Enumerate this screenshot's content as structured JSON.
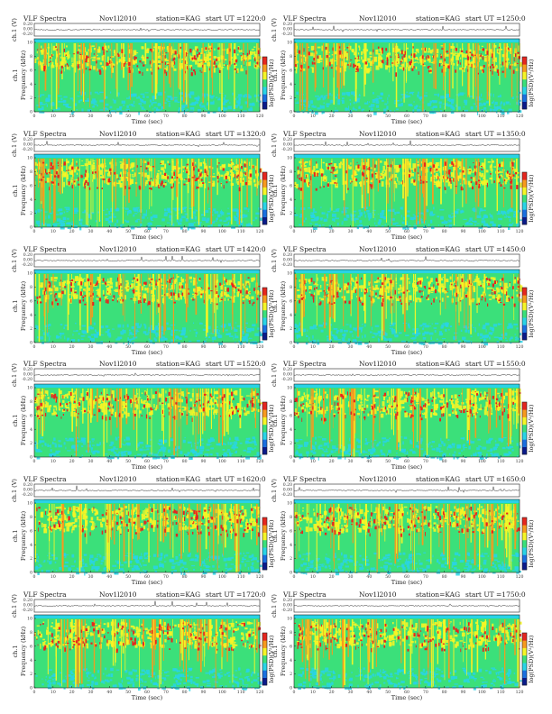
{
  "page": {
    "panel_title_prefix": "VLF Spectra",
    "station_label": "station=KAG",
    "start_label": "start  UT =",
    "xlabel": "Time  (sec)",
    "ylabel_spec": "Frequency  (kHz)",
    "ylabel_wave": "ch.1 (V)",
    "channel_label": "ch.1",
    "colorbar_label": "log(PSD) (V²/Hz)",
    "x_ticks": [
      "0",
      "10",
      "20",
      "30",
      "40",
      "50",
      "60",
      "70",
      "80",
      "90",
      "100",
      "110",
      "120"
    ],
    "freq_ticks": [
      "0",
      "2",
      "4",
      "6",
      "8",
      "10"
    ],
    "wave_ticks": [
      "0.20",
      "0.00",
      "-0.20"
    ],
    "colors": {
      "background_band": "#29d3e6",
      "mid": "#3be07a",
      "high": "#f5f526",
      "peak": "#e6261e",
      "cbar": [
        "#0b1a8a",
        "#1a6fe0",
        "#29d3e6",
        "#3be07a",
        "#f5f526",
        "#f79a1e",
        "#e6261e"
      ]
    }
  },
  "chart_data": [
    {
      "type": "heatmap",
      "date": "Nov1l2010",
      "start": "1220:0",
      "xlim": [
        0,
        120
      ],
      "ylim": [
        0,
        10
      ],
      "xlabel": "Time  (sec)",
      "ylabel": "Frequency  (kHz)",
      "colorbar": "log(PSD)(V²/Hz)"
    },
    {
      "type": "heatmap",
      "date": "Nov1l2010",
      "start": "1250:0",
      "xlim": [
        0,
        120
      ],
      "ylim": [
        0,
        10
      ],
      "xlabel": "Time  (sec)",
      "ylabel": "Frequency  (kHz)",
      "colorbar": "log(PSD)(V²/Hz)"
    },
    {
      "type": "heatmap",
      "date": "Nov1l2010",
      "start": "1320:0",
      "xlim": [
        0,
        120
      ],
      "ylim": [
        0,
        10
      ],
      "xlabel": "Time  (sec)",
      "ylabel": "Frequency  (kHz)",
      "colorbar": "log(PSD)(V²/Hz)"
    },
    {
      "type": "heatmap",
      "date": "Nov1l2010",
      "start": "1350:0",
      "xlim": [
        0,
        120
      ],
      "ylim": [
        0,
        10
      ],
      "xlabel": "Time  (sec)",
      "ylabel": "Frequency  (kHz)",
      "colorbar": "log(PSD)(V²/Hz)"
    },
    {
      "type": "heatmap",
      "date": "Nov1l2010",
      "start": "1420:0",
      "xlim": [
        0,
        120
      ],
      "ylim": [
        0,
        10
      ],
      "xlabel": "Time  (sec)",
      "ylabel": "Frequency  (kHz)",
      "colorbar": "log(PSD)(V²/Hz)"
    },
    {
      "type": "heatmap",
      "date": "Nov1l2010",
      "start": "1450:0",
      "xlim": [
        0,
        120
      ],
      "ylim": [
        0,
        10
      ],
      "xlabel": "Time  (sec)",
      "ylabel": "Frequency  (kHz)",
      "colorbar": "log(PSD)(V²/Hz)"
    },
    {
      "type": "heatmap",
      "date": "Nov1l2010",
      "start": "1520:0",
      "xlim": [
        0,
        120
      ],
      "ylim": [
        0,
        10
      ],
      "xlabel": "Time  (sec)",
      "ylabel": "Frequency  (kHz)",
      "colorbar": "log(PSD)(V²/Hz)"
    },
    {
      "type": "heatmap",
      "date": "Nov1l2010",
      "start": "1550:0",
      "xlim": [
        0,
        120
      ],
      "ylim": [
        0,
        10
      ],
      "xlabel": "Time  (sec)",
      "ylabel": "Frequency  (kHz)",
      "colorbar": "log(PSD)(V²/Hz)"
    },
    {
      "type": "heatmap",
      "date": "Nov1l2010",
      "start": "1620:0",
      "xlim": [
        0,
        120
      ],
      "ylim": [
        0,
        10
      ],
      "xlabel": "Time  (sec)",
      "ylabel": "Frequency  (kHz)",
      "colorbar": "log(PSD)(V²/Hz)"
    },
    {
      "type": "heatmap",
      "date": "Nov1l2010",
      "start": "1650:0",
      "xlim": [
        0,
        120
      ],
      "ylim": [
        0,
        10
      ],
      "xlabel": "Time  (sec)",
      "ylabel": "Frequency  (kHz)",
      "colorbar": "log(PSD)(V²/Hz)"
    },
    {
      "type": "heatmap",
      "date": "Nov1l2010",
      "start": "1720:0",
      "xlim": [
        0,
        120
      ],
      "ylim": [
        0,
        10
      ],
      "xlabel": "Time  (sec)",
      "ylabel": "Frequency  (kHz)",
      "colorbar": "log(PSD)(V²/Hz)"
    },
    {
      "type": "heatmap",
      "date": "Nov1l2010",
      "start": "1750:0",
      "xlim": [
        0,
        120
      ],
      "ylim": [
        0,
        10
      ],
      "xlabel": "Time  (sec)",
      "ylabel": "Frequency  (kHz)",
      "colorbar": "log(PSD)(V²/Hz)"
    }
  ]
}
